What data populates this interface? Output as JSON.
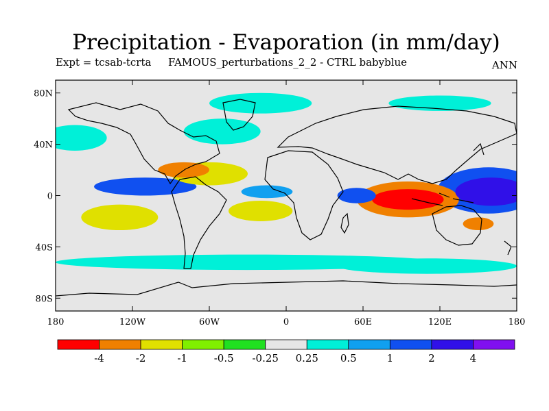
{
  "title": "Precipitation - Evaporation (in mm/day)",
  "subtitle_left": "Expt = tcsab-tcrta",
  "subtitle_center": "FAMOUS_perturbations_2_2 - CTRL babyblue",
  "season": "ANN",
  "map": {
    "lat_range": [
      -90,
      90
    ],
    "lon_range": [
      -180,
      180
    ],
    "land_mask_color": "#e6e6e6",
    "y_tick_labels": [
      {
        "lat": 80,
        "label": "80N"
      },
      {
        "lat": 40,
        "label": "40N"
      },
      {
        "lat": 0,
        "label": "0"
      },
      {
        "lat": -40,
        "label": "40S"
      },
      {
        "lat": -80,
        "label": "80S"
      }
    ],
    "x_tick_labels": [
      {
        "lon": -180,
        "label": "180"
      },
      {
        "lon": -120,
        "label": "120W"
      },
      {
        "lon": -60,
        "label": "60W"
      },
      {
        "lon": 0,
        "label": "0"
      },
      {
        "lon": 60,
        "label": "60E"
      },
      {
        "lon": 120,
        "label": "120E"
      },
      {
        "lon": 180,
        "label": "180"
      }
    ]
  },
  "colorbar": {
    "colors": [
      "#ff0000",
      "#f08000",
      "#e0e000",
      "#80f000",
      "#20e020",
      "#e6e6e6",
      "#00f0d8",
      "#10a0f0",
      "#1050f0",
      "#3010e8",
      "#8010f0"
    ],
    "labels": [
      "-4",
      "-2",
      "-1",
      "-0.5",
      "-0.25",
      "0.25",
      "0.5",
      "1",
      "2",
      "4"
    ]
  },
  "chart_data": {
    "type": "heatmap",
    "title": "Precipitation - Evaporation (in mm/day)",
    "units": "mm/day",
    "levels": [
      -4,
      -2,
      -1,
      -0.5,
      -0.25,
      0.25,
      0.5,
      1,
      2,
      4
    ],
    "features": [
      {
        "name": "tropical-indian-ocean-drying",
        "lon": 95,
        "lat": -3,
        "rx": 28,
        "ry": 8,
        "class": 0
      },
      {
        "name": "indian-ocean-drying-outer",
        "lon": 95,
        "lat": -3,
        "rx": 40,
        "ry": 14,
        "class": 1
      },
      {
        "name": "west-pacific-wetting",
        "lon": 160,
        "lat": 3,
        "rx": 28,
        "ry": 11,
        "class": 9
      },
      {
        "name": "west-pacific-wetting-outer",
        "lon": 158,
        "lat": 4,
        "rx": 40,
        "ry": 18,
        "class": 8
      },
      {
        "name": "east-pacific-wetting",
        "lon": -110,
        "lat": 7,
        "rx": 40,
        "ry": 7,
        "class": 8
      },
      {
        "name": "central-america-drying",
        "lon": -80,
        "lat": 20,
        "rx": 20,
        "ry": 6,
        "class": 1
      },
      {
        "name": "caribbean-atlantic-drying",
        "lon": -60,
        "lat": 17,
        "rx": 30,
        "ry": 9,
        "class": 2
      },
      {
        "name": "north-atlantic-wetting",
        "lon": -50,
        "lat": 50,
        "rx": 30,
        "ry": 10,
        "class": 6
      },
      {
        "name": "north-pacific-wetting",
        "lon": -165,
        "lat": 45,
        "rx": 25,
        "ry": 10,
        "class": 6
      },
      {
        "name": "south-pacific-drying",
        "lon": -130,
        "lat": -17,
        "rx": 30,
        "ry": 10,
        "class": 2
      },
      {
        "name": "south-atlantic-drying",
        "lon": -20,
        "lat": -12,
        "rx": 25,
        "ry": 8,
        "class": 2
      },
      {
        "name": "southern-ocean-wetting",
        "lon": -30,
        "lat": -52,
        "rx": 150,
        "ry": 6,
        "class": 6
      },
      {
        "name": "southern-ocean-wetting-2",
        "lon": 110,
        "lat": -55,
        "rx": 70,
        "ry": 6,
        "class": 6
      },
      {
        "name": "equatorial-atlantic-wetting",
        "lon": -15,
        "lat": 3,
        "rx": 20,
        "ry": 5,
        "class": 7
      },
      {
        "name": "western-indian-wetting",
        "lon": 55,
        "lat": 0,
        "rx": 15,
        "ry": 6,
        "class": 8
      },
      {
        "name": "australia-drying",
        "lon": 150,
        "lat": -22,
        "rx": 12,
        "ry": 5,
        "class": 1
      },
      {
        "name": "arctic-wetting",
        "lon": -20,
        "lat": 72,
        "rx": 40,
        "ry": 8,
        "class": 6
      },
      {
        "name": "siberia-wetting",
        "lon": 120,
        "lat": 72,
        "rx": 40,
        "ry": 6,
        "class": 6
      }
    ]
  }
}
